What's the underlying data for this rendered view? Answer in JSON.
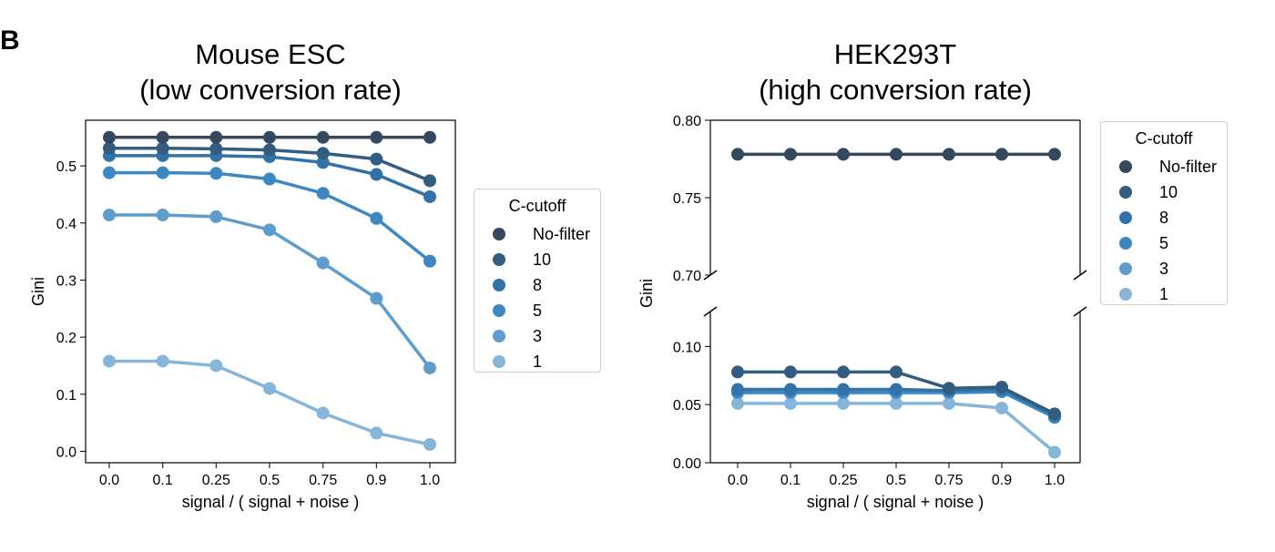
{
  "panel_letter": "B",
  "chart_data": [
    {
      "type": "line",
      "title_lines": [
        "Mouse ESC",
        "(low conversion rate)"
      ],
      "xlabel": "signal / ( signal + noise )",
      "ylabel": "Gini",
      "categories": [
        "0.0",
        "0.1",
        "0.25",
        "0.5",
        "0.75",
        "0.9",
        "1.0"
      ],
      "ylim": [
        -0.02,
        0.58
      ],
      "yticks": [
        "0.0",
        "0.1",
        "0.2",
        "0.3",
        "0.4",
        "0.5"
      ],
      "legend": {
        "title": "C-cutoff",
        "placement": "right"
      },
      "series": [
        {
          "name": "No-filter",
          "color": "#35495e",
          "values": [
            0.55,
            0.55,
            0.55,
            0.55,
            0.55,
            0.55,
            0.55
          ]
        },
        {
          "name": "10",
          "color": "#325c80",
          "values": [
            0.531,
            0.531,
            0.53,
            0.528,
            0.522,
            0.512,
            0.474
          ]
        },
        {
          "name": "8",
          "color": "#3173a8",
          "values": [
            0.518,
            0.518,
            0.518,
            0.516,
            0.506,
            0.485,
            0.446
          ]
        },
        {
          "name": "5",
          "color": "#3d87c2",
          "values": [
            0.488,
            0.488,
            0.487,
            0.477,
            0.452,
            0.408,
            0.333
          ]
        },
        {
          "name": "3",
          "color": "#5d9ccc",
          "values": [
            0.414,
            0.414,
            0.411,
            0.388,
            0.33,
            0.268,
            0.146
          ]
        },
        {
          "name": "1",
          "color": "#85b6da",
          "values": [
            0.158,
            0.158,
            0.15,
            0.11,
            0.067,
            0.032,
            0.012
          ]
        }
      ]
    },
    {
      "type": "line",
      "title_lines": [
        "HEK293T",
        "(high conversion rate)"
      ],
      "xlabel": "signal / ( signal + noise )",
      "ylabel": "Gini",
      "categories": [
        "0.0",
        "0.1",
        "0.25",
        "0.5",
        "0.75",
        "0.9",
        "1.0"
      ],
      "broken_y_axis": true,
      "ylim_upper": [
        0.7,
        0.8
      ],
      "ylim_lower": [
        0.0,
        0.13
      ],
      "yticks_upper": [
        "0.70",
        "0.75",
        "0.80"
      ],
      "yticks_lower": [
        "0.00",
        "0.05",
        "0.10"
      ],
      "legend": {
        "title": "C-cutoff",
        "placement": "right"
      },
      "series": [
        {
          "name": "No-filter",
          "color": "#35495e",
          "values": [
            0.778,
            0.778,
            0.778,
            0.778,
            0.778,
            0.778,
            0.778
          ]
        },
        {
          "name": "10",
          "color": "#325c80",
          "values": [
            0.078,
            0.078,
            0.078,
            0.078,
            0.064,
            0.065,
            0.042
          ]
        },
        {
          "name": "8",
          "color": "#3173a8",
          "values": [
            0.063,
            0.063,
            0.063,
            0.063,
            0.062,
            0.063,
            0.041
          ]
        },
        {
          "name": "5",
          "color": "#3d87c2",
          "values": [
            0.061,
            0.061,
            0.061,
            0.061,
            0.061,
            0.061,
            0.039
          ]
        },
        {
          "name": "3",
          "color": "#5d9ccc",
          "values": [
            0.06,
            0.06,
            0.06,
            0.06,
            0.06,
            0.061,
            0.039
          ]
        },
        {
          "name": "1",
          "color": "#85b6da",
          "values": [
            0.051,
            0.051,
            0.051,
            0.051,
            0.051,
            0.047,
            0.009
          ]
        }
      ]
    }
  ]
}
